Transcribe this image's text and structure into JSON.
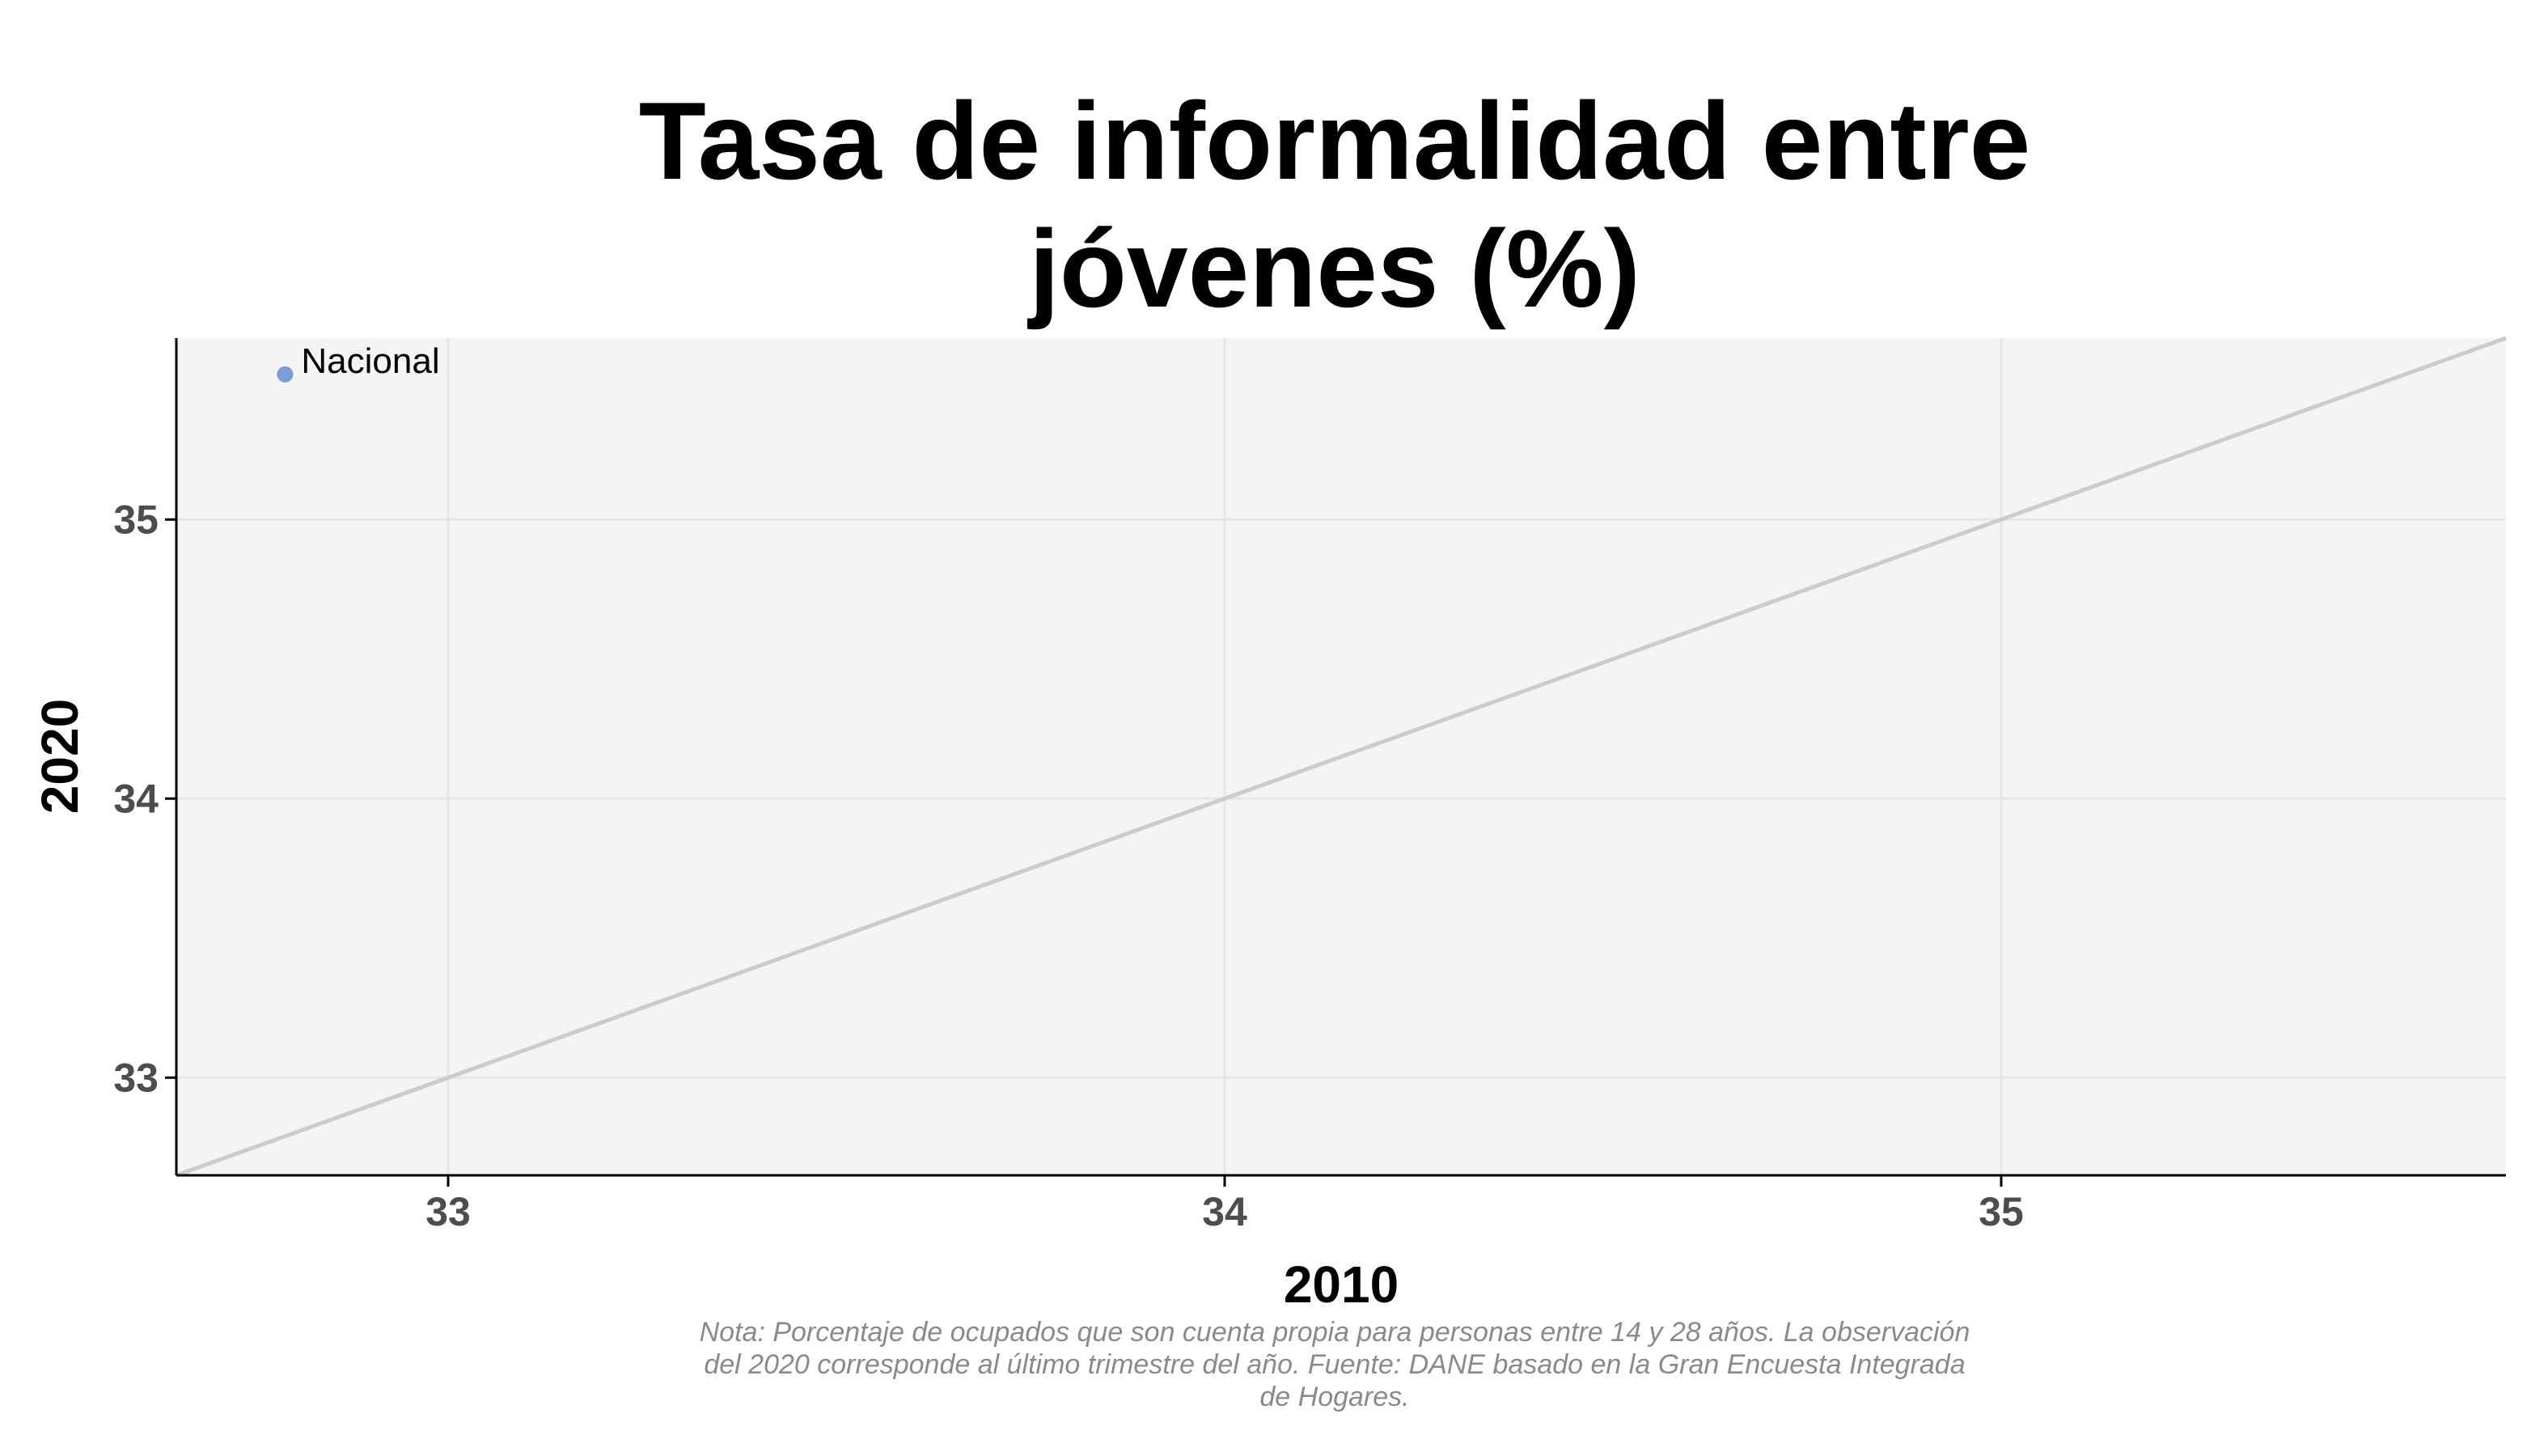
{
  "chart_data": {
    "type": "scatter",
    "title_lines": [
      "Tasa de informalidad entre",
      "jóvenes (%)"
    ],
    "xlabel": "2010",
    "ylabel": "2020",
    "xlim": [
      32.65,
      35.65
    ],
    "ylim": [
      32.65,
      35.65
    ],
    "x_ticks": [
      33,
      34,
      35
    ],
    "y_ticks": [
      33,
      34,
      35
    ],
    "grid": true,
    "reference_line": "y = x",
    "points": [
      {
        "label": "Nacional",
        "x": 32.79,
        "y": 35.52,
        "color": "#7a9fd6"
      }
    ],
    "caption_lines": [
      "Nota: Porcentaje de ocupados que son cuenta propia para personas entre 14 y 28 años. La observación",
      "del 2020 corresponde al último trimestre del año. Fuente: DANE basado en la Gran Encuesta Integrada",
      "de Hogares."
    ]
  },
  "colors": {
    "panel_background": "#f4f4f4",
    "grid": "#e6e6e6",
    "reference_line": "#cccccc",
    "axis": "#000000",
    "tick_label": "#4d4d4d",
    "caption": "#8a8a8a"
  }
}
